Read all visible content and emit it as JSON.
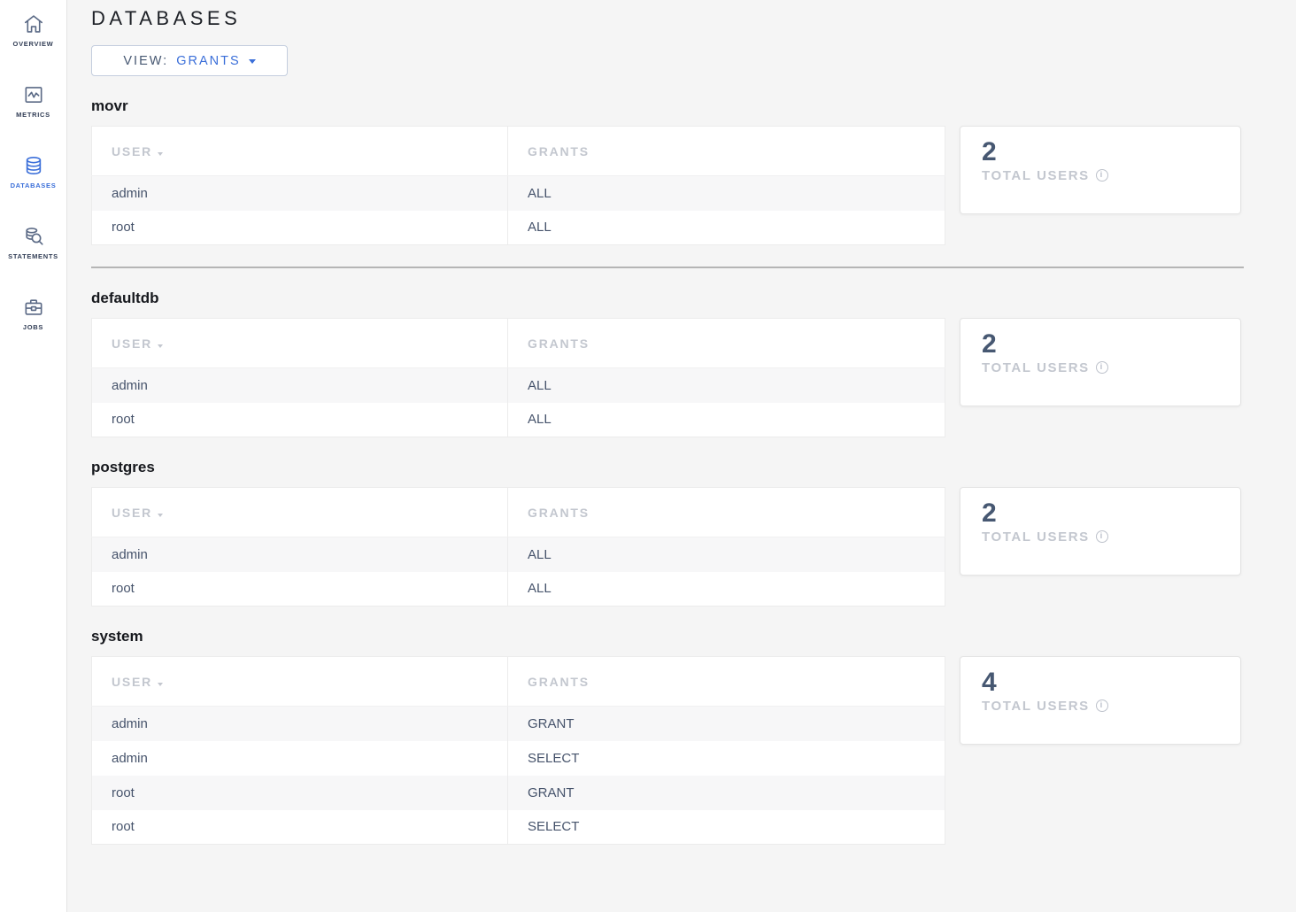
{
  "app": {
    "accent_color": "#3b6fd9"
  },
  "sidebar": {
    "items": [
      {
        "label": "OVERVIEW",
        "icon": "home-icon",
        "active": false
      },
      {
        "label": "METRICS",
        "icon": "metrics-icon",
        "active": false
      },
      {
        "label": "DATABASES",
        "icon": "database-icon",
        "active": true
      },
      {
        "label": "STATEMENTS",
        "icon": "statements-icon",
        "active": false
      },
      {
        "label": "JOBS",
        "icon": "briefcase-icon",
        "active": false
      }
    ]
  },
  "page": {
    "title": "DATABASES"
  },
  "view_selector": {
    "label": "VIEW:",
    "value": "GRANTS"
  },
  "table_columns": {
    "user": "USER",
    "grants": "GRANTS"
  },
  "total_users_label": "TOTAL USERS",
  "sections": [
    {
      "name": "movr",
      "total_users": "2",
      "rows": [
        {
          "user": "admin",
          "grants": "ALL"
        },
        {
          "user": "root",
          "grants": "ALL"
        }
      ],
      "divider_after": true
    },
    {
      "name": "defaultdb",
      "total_users": "2",
      "rows": [
        {
          "user": "admin",
          "grants": "ALL"
        },
        {
          "user": "root",
          "grants": "ALL"
        }
      ],
      "divider_after": false
    },
    {
      "name": "postgres",
      "total_users": "2",
      "rows": [
        {
          "user": "admin",
          "grants": "ALL"
        },
        {
          "user": "root",
          "grants": "ALL"
        }
      ],
      "divider_after": false
    },
    {
      "name": "system",
      "total_users": "4",
      "rows": [
        {
          "user": "admin",
          "grants": "GRANT"
        },
        {
          "user": "admin",
          "grants": "SELECT"
        },
        {
          "user": "root",
          "grants": "GRANT"
        },
        {
          "user": "root",
          "grants": "SELECT"
        }
      ],
      "divider_after": false
    }
  ]
}
